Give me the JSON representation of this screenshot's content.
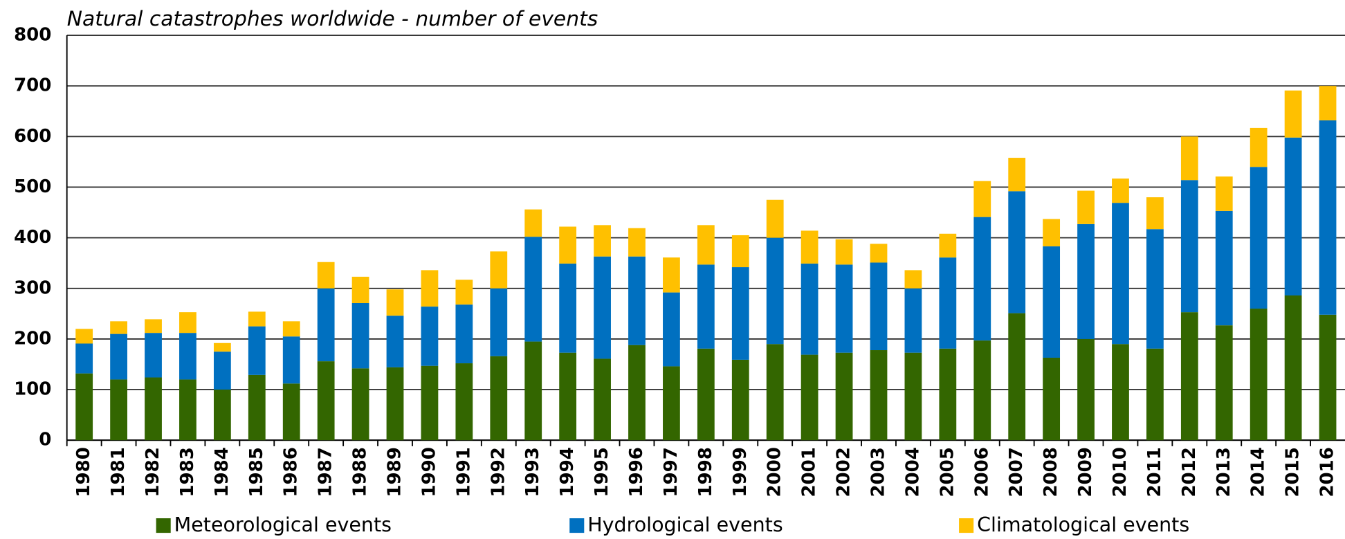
{
  "chart_data": {
    "type": "stacked_bar",
    "title": "Natural catastrophes worldwide - number of events",
    "categories": [
      "1980",
      "1981",
      "1982",
      "1983",
      "1984",
      "1985",
      "1986",
      "1987",
      "1988",
      "1989",
      "1990",
      "1991",
      "1992",
      "1993",
      "1994",
      "1995",
      "1996",
      "1997",
      "1998",
      "1999",
      "2000",
      "2001",
      "2002",
      "2003",
      "2004",
      "2005",
      "2006",
      "2007",
      "2008",
      "2009",
      "2010",
      "2011",
      "2012",
      "2013",
      "2014",
      "2015",
      "2016"
    ],
    "series": [
      {
        "name": "Meteorological events",
        "color": "#336600",
        "values": [
          132,
          120,
          124,
          120,
          100,
          129,
          112,
          156,
          142,
          144,
          147,
          152,
          166,
          195,
          173,
          161,
          188,
          146,
          181,
          159,
          190,
          169,
          173,
          178,
          173,
          181,
          197,
          251,
          163,
          200,
          190,
          181,
          253,
          227,
          260,
          286,
          248
        ]
      },
      {
        "name": "Hydrological events",
        "color": "#0070c0",
        "values": [
          59,
          90,
          88,
          92,
          75,
          96,
          93,
          144,
          129,
          102,
          117,
          116,
          134,
          207,
          176,
          202,
          175,
          146,
          166,
          183,
          210,
          180,
          174,
          173,
          127,
          180,
          244,
          241,
          220,
          227,
          279,
          236,
          261,
          226,
          280,
          312,
          384
        ]
      },
      {
        "name": "Climatological events",
        "color": "#ffc000",
        "values": [
          29,
          25,
          27,
          41,
          17,
          29,
          30,
          52,
          52,
          52,
          72,
          49,
          73,
          54,
          73,
          62,
          56,
          69,
          78,
          63,
          75,
          65,
          50,
          37,
          36,
          47,
          71,
          66,
          54,
          66,
          48,
          63,
          86,
          68,
          77,
          93,
          68
        ]
      }
    ],
    "ylim": [
      0,
      800
    ],
    "yticks": [
      0,
      100,
      200,
      300,
      400,
      500,
      600,
      700,
      800
    ],
    "grid": true
  }
}
